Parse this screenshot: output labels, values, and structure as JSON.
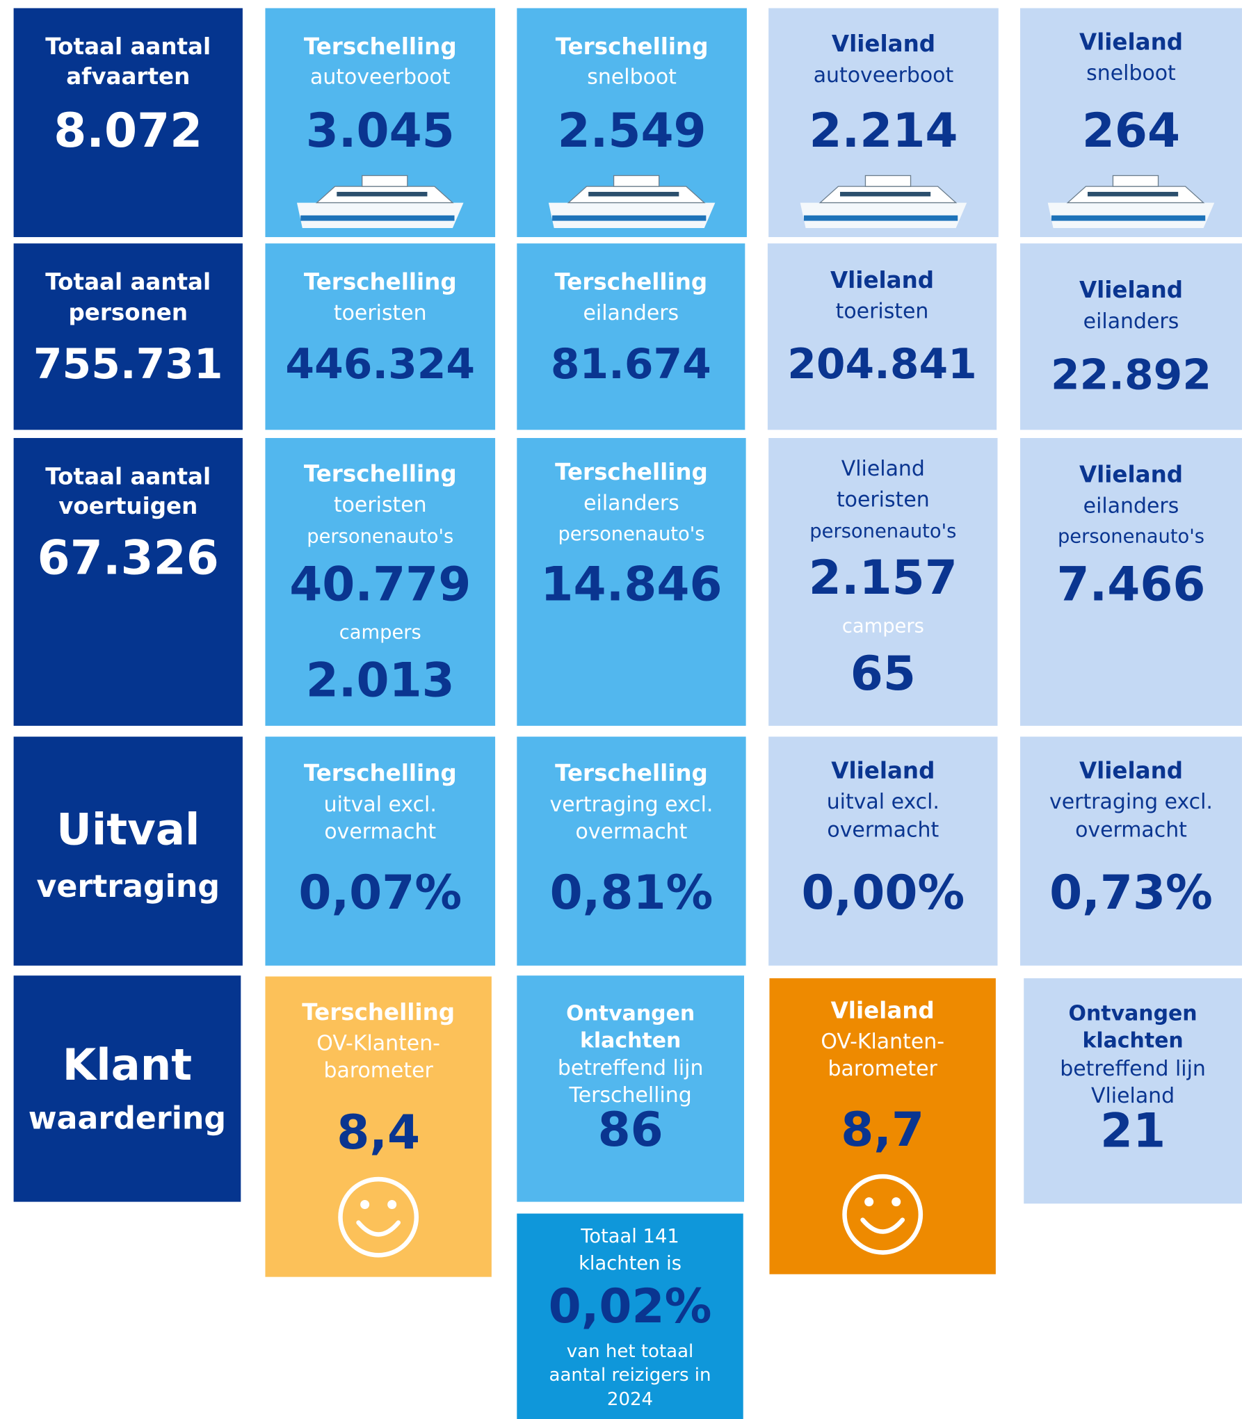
{
  "tiles": [
    {
      "lines": [
        "Totaal aantal",
        "afvaarten",
        "8.072"
      ]
    },
    {
      "lines": [
        "Terschelling",
        "autoveerboot",
        "3.045"
      ]
    },
    {
      "lines": [
        "Terschelling",
        "snelboot",
        "2.549"
      ]
    },
    {
      "lines": [
        "Vlieland",
        "autoveerboot",
        "2.214"
      ]
    },
    {
      "lines": [
        "Vlieland",
        "snelboot",
        "264"
      ]
    },
    {
      "lines": [
        "Totaal aantal",
        "personen",
        "755.731"
      ]
    },
    {
      "lines": [
        "Terschelling",
        "toeristen",
        "446.324"
      ]
    },
    {
      "lines": [
        "Terschelling",
        "eilanders",
        "81.674"
      ]
    },
    {
      "lines": [
        "Vlieland",
        "toeristen",
        "204.841"
      ]
    },
    {
      "lines": [
        "Vlieland",
        "eilanders",
        "22.892"
      ]
    },
    {
      "lines": [
        "Totaal aantal",
        "voertuigen",
        "67.326"
      ]
    },
    {
      "lines": [
        "Terschelling",
        "toeristen",
        "personenauto's",
        "40.779",
        "campers",
        "2.013"
      ]
    },
    {
      "lines": [
        "Terschelling",
        "eilanders",
        "personenauto's",
        "14.846"
      ]
    },
    {
      "lines": [
        "Vlieland",
        "toeristen",
        "personenauto's",
        "2.157",
        "campers",
        "65"
      ]
    },
    {
      "lines": [
        "Vlieland",
        "eilanders",
        "personenauto's",
        "7.466"
      ]
    },
    {
      "lines": [
        "Uitval",
        "vertraging"
      ]
    },
    {
      "lines": [
        "Terschelling",
        "uitval excl.",
        "overmacht",
        "0,07%"
      ]
    },
    {
      "lines": [
        "Terschelling",
        "vertraging excl.",
        "overmacht",
        "0,81%"
      ]
    },
    {
      "lines": [
        "Vlieland",
        "uitval excl.",
        "overmacht",
        "0,00%"
      ]
    },
    {
      "lines": [
        "Vlieland",
        "vertraging excl.",
        "overmacht",
        "0,73%"
      ]
    },
    {
      "lines": [
        "Klant",
        "waardering"
      ]
    },
    {
      "lines": [
        "Terschelling",
        "OV-Klanten-",
        "barometer",
        "8,4"
      ]
    },
    {
      "lines": [
        "Ontvangen",
        "klachten",
        "betreffend lijn",
        "Terschelling",
        "86"
      ]
    },
    {
      "lines": [
        "Totaal 141",
        "klachten is",
        "0,02%",
        "van het totaal",
        "aantal reizigers in",
        "2024"
      ]
    },
    {
      "lines": [
        "Vlieland",
        "OV-Klanten-",
        "barometer",
        "8,7"
      ]
    },
    {
      "lines": [
        "Ontvangen",
        "klachten",
        "betreffend lijn",
        "Vlieland",
        "21"
      ]
    }
  ]
}
